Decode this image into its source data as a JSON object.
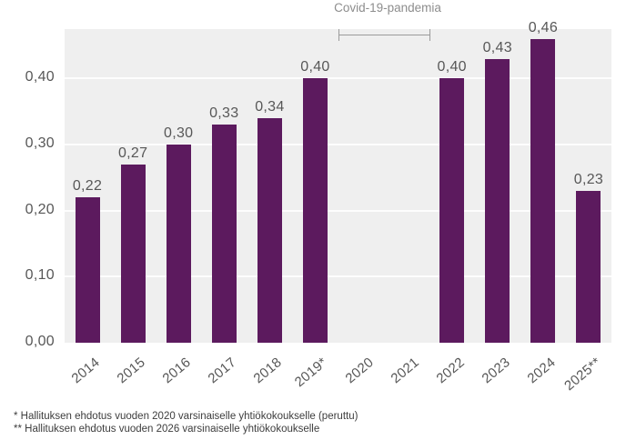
{
  "chart_data": {
    "type": "bar",
    "title": "",
    "xlabel": "",
    "ylabel": "",
    "categories": [
      "2014",
      "2015",
      "2016",
      "2017",
      "2018",
      "2019*",
      "2020",
      "2021",
      "2022",
      "2023",
      "2024",
      "2025**"
    ],
    "values": [
      0.22,
      0.27,
      0.3,
      0.33,
      0.34,
      0.4,
      null,
      null,
      0.4,
      0.43,
      0.46,
      0.23
    ],
    "value_labels": [
      "0,22",
      "0,27",
      "0,30",
      "0,33",
      "0,34",
      "0,40",
      null,
      null,
      "0,40",
      "0,43",
      "0,46",
      "0,23"
    ],
    "y_ticks": [
      {
        "label": "0,00",
        "value": 0.0
      },
      {
        "label": "0,10",
        "value": 0.1
      },
      {
        "label": "0,20",
        "value": 0.2
      },
      {
        "label": "0,30",
        "value": 0.3
      },
      {
        "label": "0,40",
        "value": 0.4
      }
    ],
    "ylim": [
      0,
      0.475
    ],
    "grid": true,
    "legend": false,
    "annotation": {
      "label": "Covid-19-pandemia",
      "span_categories": [
        "2020",
        "2021"
      ]
    },
    "colors": {
      "bar": "#5c1a5e",
      "plot_background": "#efefef",
      "gridline": "#fafafa",
      "tick_text": "#575757",
      "annotation_text": "#8d8d8d",
      "footnote_text": "#3d3d3d"
    }
  },
  "footnotes": [
    "* Hallituksen ehdotus vuoden 2020 varsinaiselle yhtiökokoukselle (peruttu)",
    "** Hallituksen ehdotus vuoden 2026 varsinaiselle yhtiökokoukselle"
  ]
}
